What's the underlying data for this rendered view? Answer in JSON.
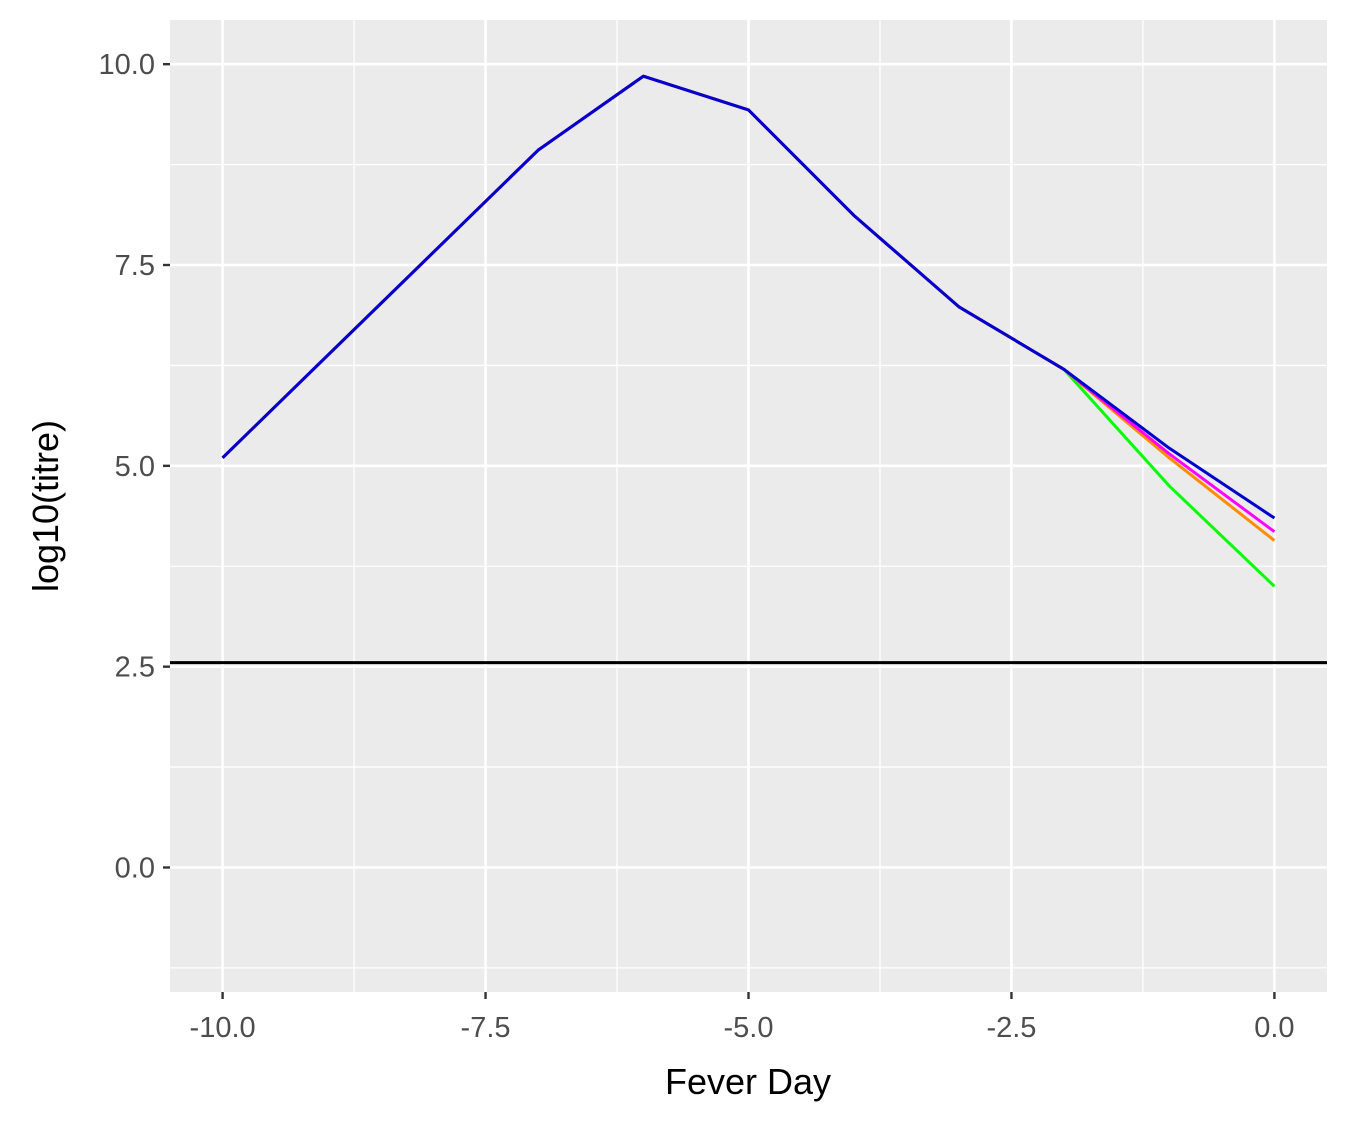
{
  "chart_data": {
    "type": "line",
    "title": "",
    "xlabel": "Fever Day",
    "ylabel": "log10(titre)",
    "xlim": [
      -10.5,
      0.5
    ],
    "ylim": [
      -1.55,
      10.55
    ],
    "x_ticks": [
      -10.0,
      -7.5,
      -5.0,
      -2.5,
      0.0
    ],
    "x_tick_labels": [
      "-10.0",
      "-7.5",
      "-5.0",
      "-2.5",
      "0.0"
    ],
    "y_ticks": [
      0.0,
      2.5,
      5.0,
      7.5,
      10.0
    ],
    "y_tick_labels": [
      "0.0",
      "2.5",
      "5.0",
      "7.5",
      "10.0"
    ],
    "grid": true,
    "legend": "none",
    "colors": {
      "panel_background": "#ebebeb",
      "grid": "#ffffff",
      "tick": "#333333",
      "reference_line": "#000000"
    },
    "reference_line": {
      "y": 2.55,
      "color": "#000000"
    },
    "series": [
      {
        "color": "#00ff00",
        "x": [
          -10,
          -7,
          -6,
          -5,
          -4,
          -3,
          -2,
          -1,
          0
        ],
        "y": [
          5.1,
          8.93,
          9.85,
          9.43,
          8.12,
          6.98,
          6.2,
          4.75,
          3.5
        ]
      },
      {
        "color": "#ff8c00",
        "x": [
          -10,
          -7,
          -6,
          -5,
          -4,
          -3,
          -2,
          -1,
          0
        ],
        "y": [
          5.1,
          8.93,
          9.85,
          9.43,
          8.12,
          6.98,
          6.2,
          5.1,
          4.07
        ]
      },
      {
        "color": "#ff00ff",
        "x": [
          -10,
          -7,
          -6,
          -5,
          -4,
          -3,
          -2,
          -1,
          0
        ],
        "y": [
          5.1,
          8.93,
          9.85,
          9.43,
          8.12,
          6.98,
          6.2,
          5.15,
          4.18
        ]
      },
      {
        "color": "#0000cd",
        "x": [
          -10,
          -7,
          -6,
          -5,
          -4,
          -3,
          -2,
          -1,
          0
        ],
        "y": [
          5.1,
          8.93,
          9.85,
          9.43,
          8.12,
          6.98,
          6.2,
          5.22,
          4.35
        ]
      }
    ]
  }
}
